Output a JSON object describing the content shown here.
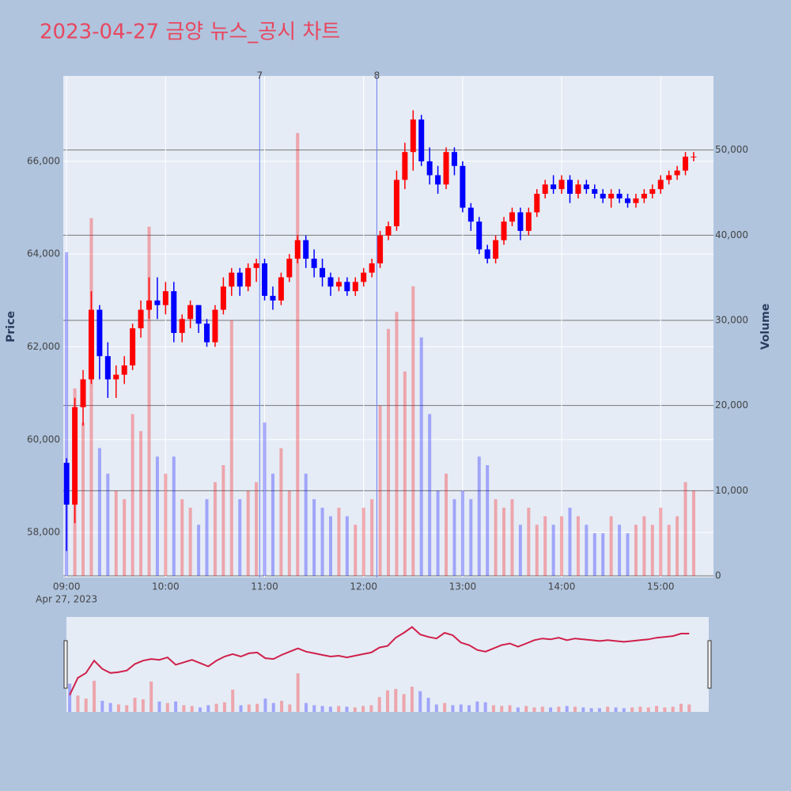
{
  "chart_data": {
    "type": "candlestick",
    "title": "2023-04-27 금양 뉴스_공시 차트",
    "ylabel": "Price",
    "y2label": "Volume",
    "x": [
      "2023-04-27 09:00",
      "2023-04-27 09:05",
      "2023-04-27 09:10",
      "2023-04-27 09:15",
      "2023-04-27 09:20",
      "2023-04-27 09:25",
      "2023-04-27 09:30",
      "2023-04-27 09:35",
      "2023-04-27 09:40",
      "2023-04-27 09:45",
      "2023-04-27 09:50",
      "2023-04-27 09:55",
      "2023-04-27 10:00",
      "2023-04-27 10:05",
      "2023-04-27 10:10",
      "2023-04-27 10:15",
      "2023-04-27 10:20",
      "2023-04-27 10:25",
      "2023-04-27 10:30",
      "2023-04-27 10:35",
      "2023-04-27 10:40",
      "2023-04-27 10:45",
      "2023-04-27 10:50",
      "2023-04-27 10:55",
      "2023-04-27 11:00",
      "2023-04-27 11:05",
      "2023-04-27 11:10",
      "2023-04-27 11:15",
      "2023-04-27 11:20",
      "2023-04-27 11:25",
      "2023-04-27 11:30",
      "2023-04-27 11:35",
      "2023-04-27 11:40",
      "2023-04-27 11:45",
      "2023-04-27 11:50",
      "2023-04-27 11:55",
      "2023-04-27 12:00",
      "2023-04-27 12:05",
      "2023-04-27 12:10",
      "2023-04-27 12:15",
      "2023-04-27 12:20",
      "2023-04-27 12:25",
      "2023-04-27 12:30",
      "2023-04-27 12:35",
      "2023-04-27 12:40",
      "2023-04-27 12:45",
      "2023-04-27 12:50",
      "2023-04-27 12:55",
      "2023-04-27 13:00",
      "2023-04-27 13:05",
      "2023-04-27 13:10",
      "2023-04-27 13:15",
      "2023-04-27 13:20",
      "2023-04-27 13:25",
      "2023-04-27 13:30",
      "2023-04-27 13:35",
      "2023-04-27 13:40",
      "2023-04-27 13:45",
      "2023-04-27 13:50",
      "2023-04-27 13:55",
      "2023-04-27 14:00",
      "2023-04-27 14:05",
      "2023-04-27 14:10",
      "2023-04-27 14:15",
      "2023-04-27 14:20",
      "2023-04-27 14:25",
      "2023-04-27 14:30",
      "2023-04-27 14:35",
      "2023-04-27 14:40",
      "2023-04-27 14:45",
      "2023-04-27 14:50",
      "2023-04-27 14:55",
      "2023-04-27 15:00",
      "2023-04-27 15:05",
      "2023-04-27 15:10",
      "2023-04-27 15:15",
      "2023-04-27 15:20"
    ],
    "open": [
      59500,
      58600,
      60700,
      61300,
      62800,
      61800,
      61300,
      61400,
      61600,
      62400,
      62800,
      63000,
      62900,
      63200,
      62300,
      62600,
      62900,
      62500,
      62100,
      62800,
      63300,
      63600,
      63300,
      63700,
      63800,
      63100,
      63000,
      63500,
      63900,
      64300,
      63900,
      63700,
      63500,
      63300,
      63400,
      63200,
      63400,
      63600,
      63800,
      64400,
      64600,
      65600,
      66200,
      66900,
      66000,
      65700,
      65500,
      66200,
      65900,
      65000,
      64700,
      64100,
      63900,
      64300,
      64700,
      64900,
      64500,
      64900,
      65300,
      65500,
      65400,
      65600,
      65300,
      65500,
      65400,
      65300,
      65200,
      65300,
      65200,
      65100,
      65200,
      65300,
      65400,
      65600,
      65700,
      65800,
      66100
    ],
    "high": [
      59600,
      60900,
      61500,
      63200,
      62900,
      62100,
      61600,
      61800,
      62500,
      63000,
      63500,
      63500,
      63400,
      63400,
      62700,
      63000,
      62900,
      62600,
      62900,
      63500,
      63700,
      63700,
      63800,
      63900,
      63900,
      63300,
      63600,
      64000,
      64400,
      64400,
      64100,
      63900,
      63600,
      63500,
      63500,
      63500,
      63700,
      63900,
      64500,
      64700,
      65800,
      66400,
      67100,
      67000,
      66300,
      65900,
      66300,
      66300,
      66000,
      65100,
      64800,
      64200,
      64400,
      64800,
      65000,
      65000,
      65000,
      65400,
      65600,
      65700,
      65700,
      65700,
      65600,
      65600,
      65500,
      65400,
      65400,
      65400,
      65300,
      65300,
      65400,
      65500,
      65700,
      65800,
      65900,
      66200,
      66200
    ],
    "low": [
      57600,
      58200,
      60300,
      61200,
      61300,
      60900,
      60900,
      61200,
      61500,
      62200,
      62600,
      62600,
      62700,
      62100,
      62100,
      62400,
      62300,
      62000,
      62000,
      62700,
      63100,
      63100,
      63200,
      63400,
      63000,
      62800,
      62900,
      63400,
      63800,
      63700,
      63500,
      63300,
      63100,
      63200,
      63100,
      63100,
      63300,
      63500,
      63700,
      64300,
      64500,
      65400,
      65800,
      65900,
      65500,
      65300,
      65400,
      65700,
      64900,
      64500,
      64000,
      63800,
      63800,
      64200,
      64600,
      64300,
      64400,
      64800,
      65200,
      65300,
      65300,
      65100,
      65200,
      65300,
      65200,
      65100,
      65000,
      65100,
      65000,
      65000,
      65100,
      65200,
      65300,
      65500,
      65600,
      65700,
      66000
    ],
    "close": [
      58600,
      60700,
      61300,
      62800,
      61800,
      61300,
      61400,
      61600,
      62400,
      62800,
      63000,
      62900,
      63200,
      62300,
      62600,
      62900,
      62500,
      62100,
      62800,
      63300,
      63600,
      63300,
      63700,
      63800,
      63100,
      63000,
      63500,
      63900,
      64300,
      63900,
      63700,
      63500,
      63300,
      63400,
      63200,
      63400,
      63600,
      63800,
      64400,
      64600,
      65600,
      66200,
      66900,
      66000,
      65700,
      65500,
      66200,
      65900,
      65000,
      64700,
      64100,
      63900,
      64300,
      64700,
      64900,
      64500,
      64900,
      65300,
      65500,
      65400,
      65600,
      65300,
      65500,
      65400,
      65300,
      65200,
      65300,
      65200,
      65100,
      65200,
      65300,
      65400,
      65600,
      65700,
      65800,
      66100,
      66100
    ],
    "volume": [
      38000,
      22000,
      18000,
      42000,
      15000,
      12000,
      10000,
      9000,
      19000,
      17000,
      41000,
      14000,
      12000,
      14000,
      9000,
      8000,
      6000,
      9000,
      11000,
      13000,
      30000,
      9000,
      10000,
      11000,
      18000,
      12000,
      15000,
      10000,
      52000,
      12000,
      9000,
      8000,
      7000,
      8000,
      7000,
      6000,
      8000,
      9000,
      20000,
      29000,
      31000,
      24000,
      34000,
      28000,
      19000,
      10000,
      12000,
      9000,
      10000,
      9000,
      14000,
      13000,
      9000,
      8000,
      9000,
      6000,
      8000,
      6000,
      7000,
      6000,
      7000,
      8000,
      7000,
      6000,
      5000,
      5000,
      7000,
      6000,
      5000,
      6000,
      7000,
      6000,
      8000,
      6000,
      7000,
      11000,
      10000
    ],
    "increasing_color": "#ff0000",
    "decreasing_color": "#0000ff",
    "xlim": [
      "2023-04-27 08:58",
      "2023-04-27 15:32"
    ],
    "xticks": [
      {
        "value": "2023-04-27 09:00",
        "label": "09:00"
      },
      {
        "value": "2023-04-27 10:00",
        "label": "10:00"
      },
      {
        "value": "2023-04-27 11:00",
        "label": "11:00"
      },
      {
        "value": "2023-04-27 12:00",
        "label": "12:00"
      },
      {
        "value": "2023-04-27 13:00",
        "label": "13:00"
      },
      {
        "value": "2023-04-27 14:00",
        "label": "14:00"
      },
      {
        "value": "2023-04-27 15:00",
        "label": "15:00"
      }
    ],
    "x_sublabel": "Apr 27, 2023",
    "ylim": [
      57030,
      67840
    ],
    "yticks": [
      {
        "value": 58000,
        "label": "58,000"
      },
      {
        "value": 60000,
        "label": "60,000"
      },
      {
        "value": 62000,
        "label": "62,000"
      },
      {
        "value": 64000,
        "label": "64,000"
      },
      {
        "value": 66000,
        "label": "66,000"
      }
    ],
    "y2lim": [
      0,
      58700
    ],
    "y2ticks": [
      0,
      {
        "value": 10000,
        "label": "10,000"
      },
      {
        "value": 20000,
        "label": "20,000"
      },
      {
        "value": 30000,
        "label": "30,000"
      },
      {
        "value": 40000,
        "label": "40,000"
      },
      {
        "value": 50000,
        "label": "50,000"
      }
    ],
    "annotations": [
      {
        "x": "2023-04-27 10:57",
        "text": "7"
      },
      {
        "x": "2023-04-27 12:08",
        "text": "8"
      }
    ]
  }
}
